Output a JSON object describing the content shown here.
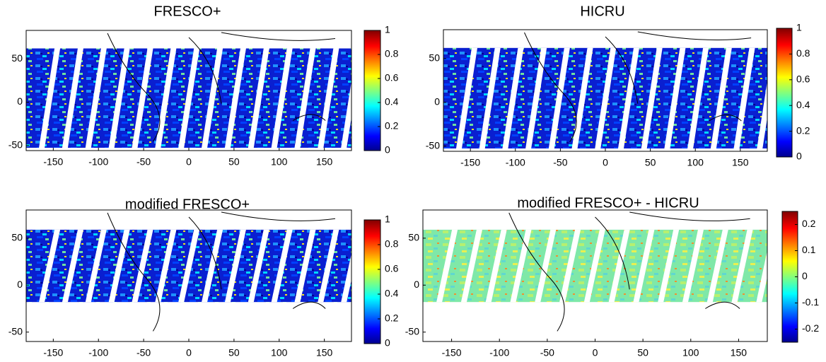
{
  "chart_data": [
    {
      "type": "map",
      "title": "FRESCO+",
      "xlim": [
        -180,
        180
      ],
      "xticks": [
        -150,
        -100,
        -50,
        0,
        50,
        100,
        150
      ],
      "ylim": [
        -56,
        83
      ],
      "yticks": [
        -50,
        0,
        50
      ],
      "colorbar": {
        "lim": [
          0,
          1
        ],
        "ticks": [
          0,
          0.2,
          0.4,
          0.6,
          0.8,
          1
        ],
        "colormap": "jet"
      }
    },
    {
      "type": "map",
      "title": "HICRU",
      "xlim": [
        -180,
        180
      ],
      "xticks": [
        -150,
        -100,
        -50,
        0,
        50,
        100,
        150
      ],
      "ylim": [
        -56,
        83
      ],
      "yticks": [
        -50,
        0,
        50
      ],
      "colorbar": {
        "lim": [
          0,
          1
        ],
        "ticks": [
          0,
          0.2,
          0.4,
          0.6,
          0.8,
          1
        ],
        "colormap": "jet"
      }
    },
    {
      "type": "map",
      "title": "modified FRESCO+",
      "xlim": [
        -180,
        180
      ],
      "xticks": [
        -150,
        -100,
        -50,
        0,
        50,
        100,
        150
      ],
      "ylim": [
        -60,
        80
      ],
      "yticks": [
        -50,
        0,
        50
      ],
      "colorbar": {
        "lim": [
          0,
          1
        ],
        "ticks": [
          0,
          0.2,
          0.4,
          0.6,
          0.8,
          1
        ],
        "colormap": "jet"
      }
    },
    {
      "type": "map",
      "title": "modified FRESCO+ - HICRU",
      "xlim": [
        -180,
        180
      ],
      "xticks": [
        -150,
        -100,
        -50,
        0,
        50,
        100,
        150
      ],
      "ylim": [
        -60,
        80
      ],
      "yticks": [
        -50,
        0,
        50
      ],
      "colorbar": {
        "lim": [
          -0.25,
          0.25
        ],
        "ticks": [
          -0.2,
          -0.1,
          0,
          0.1,
          0.2
        ],
        "colormap": "jet"
      }
    }
  ]
}
